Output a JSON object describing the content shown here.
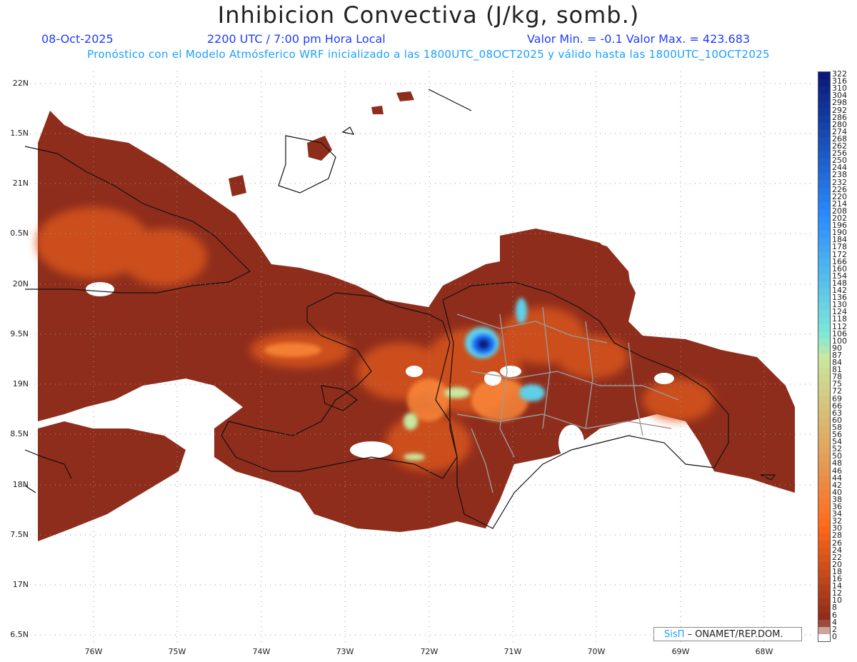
{
  "header": {
    "title": "Inhibicion Convectiva (J/kg, somb.)",
    "date": "08-Oct-2025",
    "time": "2200 UTC / 7:00 pm Hora Local",
    "minmax": "Valor Min. = -0.1  Valor Max. = 423.683",
    "forecast": "Pronóstico con el Modelo Atmósferico WRF inicializado a las 1800UTC_08OCT2025 y válido hasta las  1800UTC_10OCT2025"
  },
  "axes": {
    "lat_labels": [
      "22N",
      "1.5N",
      "21N",
      "0.5N",
      "20N",
      "9.5N",
      "19N",
      "8.5N",
      "18N",
      "7.5N",
      "17N",
      "6.5N"
    ],
    "lon_labels": [
      "76W",
      "75W",
      "74W",
      "73W",
      "72W",
      "71W",
      "70W",
      "69W",
      "68W"
    ]
  },
  "colorbar": {
    "labels": [
      "322",
      "316",
      "310",
      "304",
      "298",
      "292",
      "286",
      "280",
      "274",
      "268",
      "262",
      "256",
      "250",
      "244",
      "238",
      "232",
      "226",
      "220",
      "214",
      "208",
      "202",
      "196",
      "190",
      "184",
      "178",
      "172",
      "166",
      "160",
      "154",
      "148",
      "142",
      "136",
      "130",
      "124",
      "118",
      "112",
      "106",
      "100",
      "90",
      "87",
      "84",
      "81",
      "78",
      "75",
      "72",
      "69",
      "66",
      "63",
      "60",
      "58",
      "56",
      "54",
      "52",
      "50",
      "48",
      "46",
      "44",
      "42",
      "40",
      "38",
      "36",
      "34",
      "32",
      "30",
      "28",
      "26",
      "24",
      "22",
      "20",
      "18",
      "16",
      "14",
      "12",
      "10",
      "8",
      "6",
      "4",
      "2",
      "0"
    ],
    "colors_top": "#0a1a7a",
    "colors_mid_blue": "#2a8cff",
    "colors_cyan": "#7fe8d8",
    "colors_green": "#c8e8a0",
    "colors_orange": "#ff6a1a",
    "colors_bottom": "#8c2a1a"
  },
  "credit": {
    "brand": "SisΠ",
    "rest": " – ONAMET/REP.DOM."
  }
}
